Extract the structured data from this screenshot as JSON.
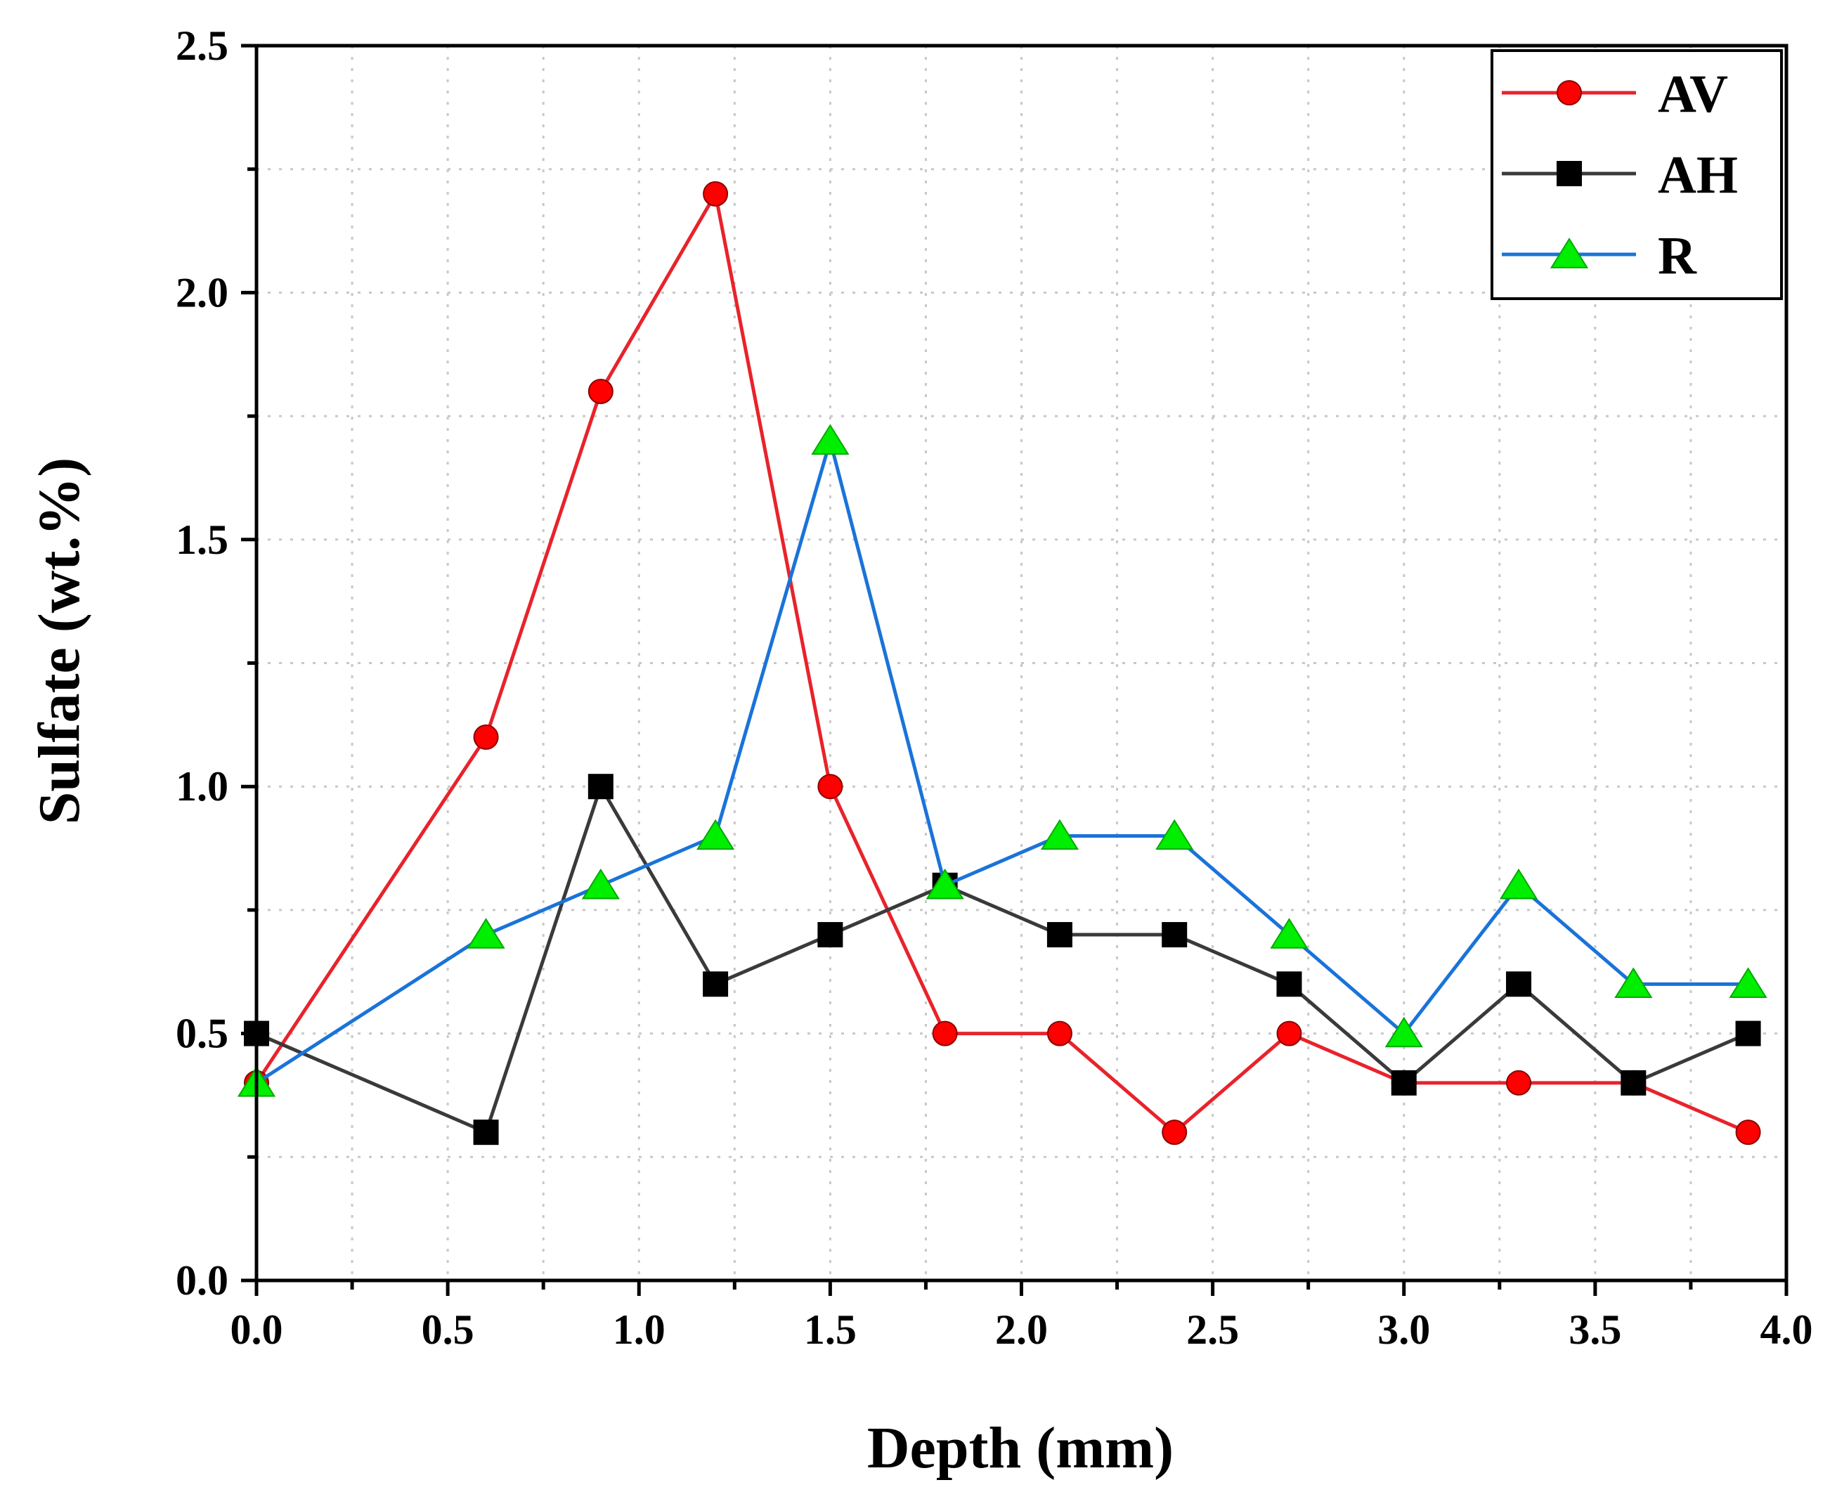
{
  "chart_data": {
    "type": "line",
    "title": "",
    "xlabel": "Depth (mm)",
    "ylabel": "Sulfate (wt.%)",
    "xlim": [
      0,
      4.0
    ],
    "ylim": [
      0,
      2.5
    ],
    "xticks": [
      0,
      0.5,
      1.0,
      1.5,
      2.0,
      2.5,
      3.0,
      3.5,
      4.0
    ],
    "xtick_labels": [
      "0.0",
      "0.5",
      "1.0",
      "1.5",
      "2.0",
      "2.5",
      "3.0",
      "3.5",
      "4.0"
    ],
    "yticks": [
      0,
      0.5,
      1.0,
      1.5,
      2.0,
      2.5
    ],
    "ytick_labels": [
      "0.0",
      "0.5",
      "1.0",
      "1.5",
      "2.0",
      "2.5"
    ],
    "grid": true,
    "legend_position": "top-right",
    "x": [
      0.0,
      0.6,
      0.9,
      1.2,
      1.5,
      1.8,
      2.1,
      2.4,
      2.7,
      3.0,
      3.3,
      3.6,
      3.9
    ],
    "series": [
      {
        "name": "AV",
        "color": "#e8232b",
        "marker": "circle",
        "marker_color": "#ff0000",
        "values": [
          0.4,
          1.1,
          1.8,
          2.2,
          1.0,
          0.5,
          0.5,
          0.3,
          0.5,
          0.4,
          0.4,
          0.4,
          0.3
        ]
      },
      {
        "name": "AH",
        "color": "#3a3a3a",
        "marker": "square",
        "marker_color": "#000000",
        "values": [
          0.5,
          0.3,
          1.0,
          0.6,
          0.7,
          0.8,
          0.7,
          0.7,
          0.6,
          0.4,
          0.6,
          0.4,
          0.5
        ]
      },
      {
        "name": "R",
        "color": "#1a73d9",
        "marker": "triangle",
        "marker_color": "#00ee00",
        "values": [
          0.4,
          0.7,
          0.8,
          0.9,
          1.7,
          0.8,
          0.9,
          0.9,
          0.7,
          0.5,
          0.8,
          0.6,
          0.6
        ]
      }
    ]
  }
}
